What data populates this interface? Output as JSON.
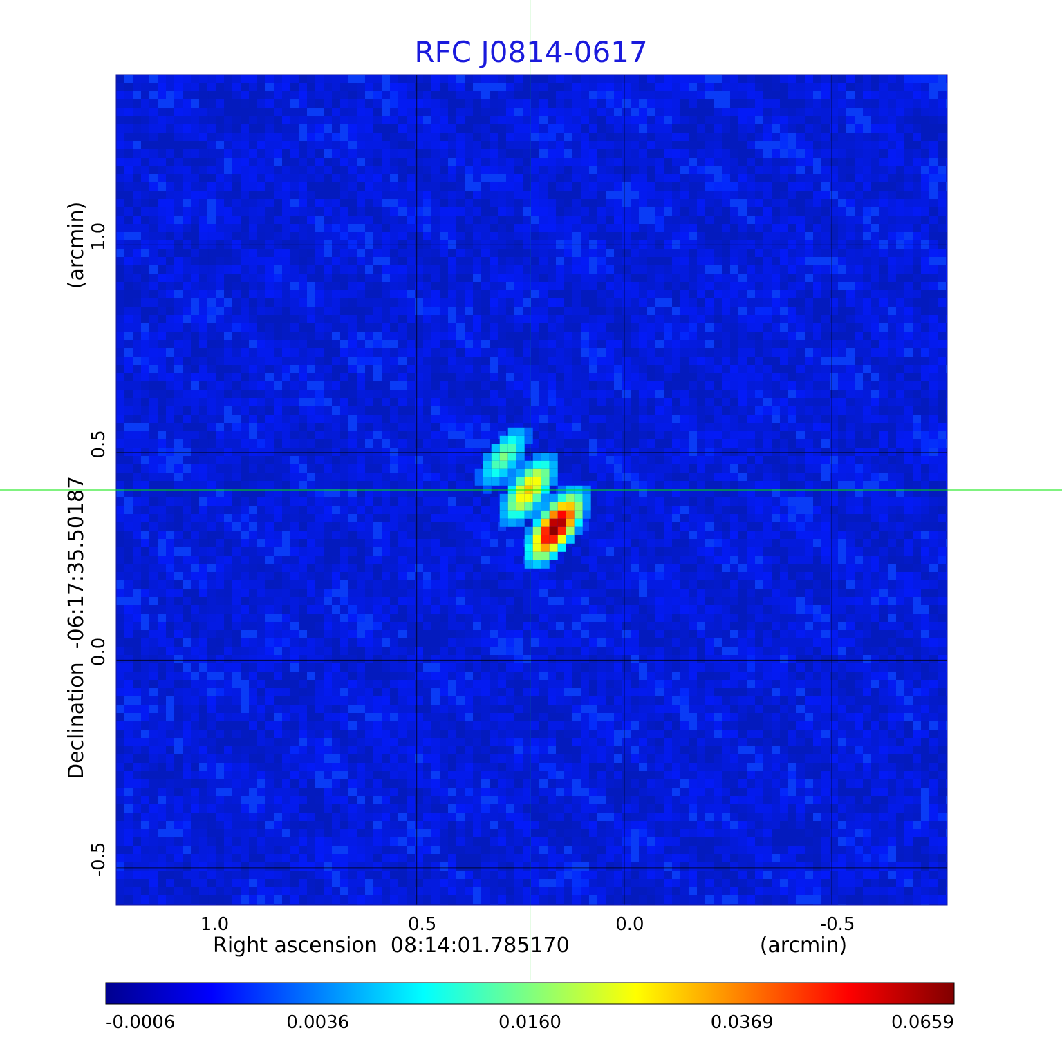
{
  "chart_data": {
    "type": "heatmap",
    "title": "RFC J0814-0617",
    "xlabel": "Right ascension  08:14:01.785170",
    "xunit": "(arcmin)",
    "ylabel": "Declination  -06:17:35.50187",
    "yunit": "(arcmin)",
    "x_ticks": [
      "1.0",
      "0.5",
      "0.0",
      "-0.5"
    ],
    "x_tick_values": [
      1.0,
      0.5,
      0.0,
      -0.5
    ],
    "y_ticks": [
      "1.0",
      "0.5",
      "0.0",
      "-0.5"
    ],
    "y_tick_values": [
      1.0,
      0.5,
      0.0,
      -0.5
    ],
    "xlim": [
      1.224,
      -0.778
    ],
    "ylim": [
      -0.59,
      1.41
    ],
    "grid": true,
    "crosshair": {
      "x": 0.227,
      "y": 0.41
    },
    "background_level": 0.0,
    "source_components": [
      {
        "x": 0.29,
        "y": 0.49,
        "peak": 0.016
      },
      {
        "x": 0.23,
        "y": 0.41,
        "peak": 0.031
      },
      {
        "x": 0.165,
        "y": 0.32,
        "peak": 0.0659
      }
    ],
    "colorbar": {
      "tick_labels": [
        "-0.0006",
        "0.0036",
        "0.0160",
        "0.0369",
        "0.0659"
      ],
      "tick_values": [
        -0.0006,
        0.0036,
        0.016,
        0.0369,
        0.0659
      ],
      "colormap": "jet",
      "colors": [
        "#00008f",
        "#0000ff",
        "#00ffff",
        "#ffff00",
        "#ff0000",
        "#800000"
      ]
    },
    "colors": {
      "title": "#1a1adc",
      "crosshair": "#00e600",
      "grid": "#000000"
    }
  }
}
